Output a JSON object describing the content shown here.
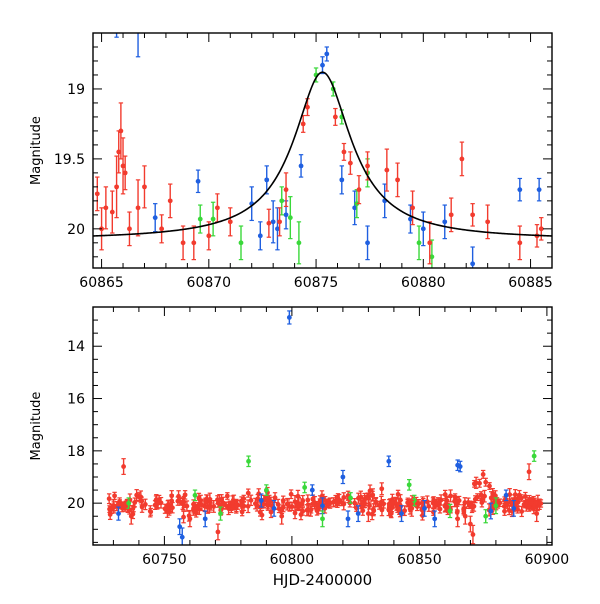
{
  "chart_data": [
    {
      "type": "scatter",
      "panel": "top",
      "xlabel": "",
      "ylabel": "Magnitude",
      "xlim": [
        60864.6,
        60886.0
      ],
      "ylim": [
        20.28,
        18.6
      ],
      "y_inverted": true,
      "x_ticks": [
        60865,
        60870,
        60875,
        60880,
        60885
      ],
      "y_ticks": [
        19,
        19.5,
        20
      ],
      "model_curve": {
        "color": "#000000",
        "peak_x": 60875.3,
        "peak_mag": 18.88,
        "baseline_mag": 20.08,
        "width_days": 1.25
      },
      "series": [
        {
          "color": "#1f5fe0",
          "points": [
            {
              "x": 60865.7,
              "y": 18.45,
              "err": 0.18
            },
            {
              "x": 60866.7,
              "y": 18.55,
              "err": 0.22
            },
            {
              "x": 60867.5,
              "y": 19.92,
              "err": 0.1
            },
            {
              "x": 60869.5,
              "y": 19.66,
              "err": 0.08
            },
            {
              "x": 60872.0,
              "y": 19.82,
              "err": 0.12
            },
            {
              "x": 60872.4,
              "y": 20.05,
              "err": 0.1
            },
            {
              "x": 60872.7,
              "y": 19.65,
              "err": 0.1
            },
            {
              "x": 60873.0,
              "y": 19.95,
              "err": 0.15
            },
            {
              "x": 60873.2,
              "y": 20.0,
              "err": 0.15
            },
            {
              "x": 60873.6,
              "y": 19.9,
              "err": 0.1
            },
            {
              "x": 60874.3,
              "y": 19.55,
              "err": 0.08
            },
            {
              "x": 60875.3,
              "y": 18.83,
              "err": 0.06
            },
            {
              "x": 60875.5,
              "y": 18.75,
              "err": 0.05
            },
            {
              "x": 60876.2,
              "y": 19.65,
              "err": 0.1
            },
            {
              "x": 60876.8,
              "y": 19.85,
              "err": 0.12
            },
            {
              "x": 60877.4,
              "y": 20.1,
              "err": 0.12
            },
            {
              "x": 60878.2,
              "y": 19.8,
              "err": 0.12
            },
            {
              "x": 60879.4,
              "y": 19.93,
              "err": 0.1
            },
            {
              "x": 60880.0,
              "y": 20.0,
              "err": 0.12
            },
            {
              "x": 60881.0,
              "y": 19.95,
              "err": 0.12
            },
            {
              "x": 60882.3,
              "y": 20.25,
              "err": 0.12
            },
            {
              "x": 60884.5,
              "y": 19.72,
              "err": 0.08
            },
            {
              "x": 60885.4,
              "y": 19.72,
              "err": 0.08
            }
          ]
        },
        {
          "color": "#3ad83a",
          "points": [
            {
              "x": 60869.6,
              "y": 19.93,
              "err": 0.1
            },
            {
              "x": 60870.2,
              "y": 19.93,
              "err": 0.12
            },
            {
              "x": 60871.5,
              "y": 20.1,
              "err": 0.12
            },
            {
              "x": 60873.4,
              "y": 19.8,
              "err": 0.1
            },
            {
              "x": 60873.8,
              "y": 19.92,
              "err": 0.15
            },
            {
              "x": 60874.2,
              "y": 20.1,
              "err": 0.15
            },
            {
              "x": 60875.0,
              "y": 18.9,
              "err": 0.05
            },
            {
              "x": 60875.8,
              "y": 19.0,
              "err": 0.05
            },
            {
              "x": 60876.2,
              "y": 19.2,
              "err": 0.05
            },
            {
              "x": 60876.9,
              "y": 19.82,
              "err": 0.1
            },
            {
              "x": 60877.4,
              "y": 19.6,
              "err": 0.1
            },
            {
              "x": 60879.8,
              "y": 20.1,
              "err": 0.12
            },
            {
              "x": 60880.4,
              "y": 20.2,
              "err": 0.12
            }
          ]
        },
        {
          "color": "#f23b2e",
          "points": [
            {
              "x": 60864.8,
              "y": 19.75,
              "err": 0.12
            },
            {
              "x": 60865.0,
              "y": 20.0,
              "err": 0.15
            },
            {
              "x": 60865.2,
              "y": 19.85,
              "err": 0.15
            },
            {
              "x": 60865.5,
              "y": 19.88,
              "err": 0.15
            },
            {
              "x": 60865.7,
              "y": 19.7,
              "err": 0.22
            },
            {
              "x": 60865.8,
              "y": 19.45,
              "err": 0.15
            },
            {
              "x": 60865.9,
              "y": 19.3,
              "err": 0.2
            },
            {
              "x": 60866.0,
              "y": 19.55,
              "err": 0.2
            },
            {
              "x": 60866.1,
              "y": 19.6,
              "err": 0.12
            },
            {
              "x": 60866.3,
              "y": 20.0,
              "err": 0.12
            },
            {
              "x": 60866.7,
              "y": 19.85,
              "err": 0.2
            },
            {
              "x": 60867.0,
              "y": 19.7,
              "err": 0.15
            },
            {
              "x": 60867.8,
              "y": 20.0,
              "err": 0.1
            },
            {
              "x": 60868.2,
              "y": 19.8,
              "err": 0.12
            },
            {
              "x": 60868.8,
              "y": 20.1,
              "err": 0.12
            },
            {
              "x": 60869.3,
              "y": 20.1,
              "err": 0.12
            },
            {
              "x": 60870.0,
              "y": 20.05,
              "err": 0.1
            },
            {
              "x": 60870.4,
              "y": 19.85,
              "err": 0.1
            },
            {
              "x": 60871.0,
              "y": 19.95,
              "err": 0.1
            },
            {
              "x": 60872.8,
              "y": 19.96,
              "err": 0.1
            },
            {
              "x": 60873.3,
              "y": 19.95,
              "err": 0.1
            },
            {
              "x": 60873.6,
              "y": 19.72,
              "err": 0.12
            },
            {
              "x": 60874.4,
              "y": 19.25,
              "err": 0.06
            },
            {
              "x": 60874.6,
              "y": 19.13,
              "err": 0.06
            },
            {
              "x": 60875.9,
              "y": 19.2,
              "err": 0.06
            },
            {
              "x": 60876.3,
              "y": 19.45,
              "err": 0.06
            },
            {
              "x": 60876.6,
              "y": 19.53,
              "err": 0.08
            },
            {
              "x": 60877.0,
              "y": 19.72,
              "err": 0.1
            },
            {
              "x": 60877.4,
              "y": 19.55,
              "err": 0.1
            },
            {
              "x": 60878.3,
              "y": 19.58,
              "err": 0.15
            },
            {
              "x": 60878.8,
              "y": 19.65,
              "err": 0.12
            },
            {
              "x": 60879.5,
              "y": 19.85,
              "err": 0.12
            },
            {
              "x": 60880.3,
              "y": 20.1,
              "err": 0.15
            },
            {
              "x": 60881.3,
              "y": 19.9,
              "err": 0.12
            },
            {
              "x": 60881.8,
              "y": 19.5,
              "err": 0.12
            },
            {
              "x": 60882.3,
              "y": 19.9,
              "err": 0.08
            },
            {
              "x": 60883.0,
              "y": 19.95,
              "err": 0.12
            },
            {
              "x": 60884.5,
              "y": 20.1,
              "err": 0.12
            },
            {
              "x": 60885.3,
              "y": 20.05,
              "err": 0.08
            },
            {
              "x": 60885.5,
              "y": 20.0,
              "err": 0.08
            }
          ]
        }
      ]
    },
    {
      "type": "scatter",
      "panel": "bottom",
      "xlabel": "HJD-2400000",
      "ylabel": "Magnitude",
      "xlim": [
        60722,
        60902
      ],
      "ylim": [
        21.6,
        12.5
      ],
      "y_inverted": true,
      "x_ticks": [
        60750,
        60800,
        60850,
        60900
      ],
      "y_ticks": [
        14,
        16,
        18,
        20
      ],
      "series": [
        {
          "color": "#1f5fe0",
          "points": [
            {
              "x": 60732,
              "y": 20.4,
              "err": 0.25
            },
            {
              "x": 60756,
              "y": 20.9,
              "err": 0.3
            },
            {
              "x": 60757,
              "y": 21.3,
              "err": 0.35
            },
            {
              "x": 60766,
              "y": 20.6,
              "err": 0.3
            },
            {
              "x": 60788,
              "y": 19.9,
              "err": 0.25
            },
            {
              "x": 60793,
              "y": 20.2,
              "err": 0.3
            },
            {
              "x": 60799,
              "y": 12.9,
              "err": 0.25
            },
            {
              "x": 60808,
              "y": 19.5,
              "err": 0.2
            },
            {
              "x": 60812,
              "y": 20.1,
              "err": 0.3
            },
            {
              "x": 60820,
              "y": 19.0,
              "err": 0.25
            },
            {
              "x": 60822,
              "y": 20.6,
              "err": 0.3
            },
            {
              "x": 60826,
              "y": 20.4,
              "err": 0.3
            },
            {
              "x": 60838,
              "y": 18.4,
              "err": 0.2
            },
            {
              "x": 60843,
              "y": 20.4,
              "err": 0.3
            },
            {
              "x": 60852,
              "y": 20.2,
              "err": 0.3
            },
            {
              "x": 60856,
              "y": 20.6,
              "err": 0.3
            },
            {
              "x": 60865,
              "y": 18.55,
              "err": 0.2
            },
            {
              "x": 60866,
              "y": 18.6,
              "err": 0.2
            },
            {
              "x": 60878,
              "y": 20.3,
              "err": 0.3
            },
            {
              "x": 60884,
              "y": 19.7,
              "err": 0.2
            },
            {
              "x": 60887,
              "y": 20.2,
              "err": 0.3
            }
          ]
        },
        {
          "color": "#3ad83a",
          "points": [
            {
              "x": 60736,
              "y": 20.0,
              "err": 0.2
            },
            {
              "x": 60762,
              "y": 19.7,
              "err": 0.2
            },
            {
              "x": 60772,
              "y": 20.4,
              "err": 0.25
            },
            {
              "x": 60783,
              "y": 18.4,
              "err": 0.2
            },
            {
              "x": 60790,
              "y": 19.5,
              "err": 0.2
            },
            {
              "x": 60805,
              "y": 19.4,
              "err": 0.2
            },
            {
              "x": 60812,
              "y": 20.6,
              "err": 0.3
            },
            {
              "x": 60823,
              "y": 19.8,
              "err": 0.2
            },
            {
              "x": 60846,
              "y": 19.3,
              "err": 0.2
            },
            {
              "x": 60848,
              "y": 19.9,
              "err": 0.2
            },
            {
              "x": 60862,
              "y": 20.3,
              "err": 0.25
            },
            {
              "x": 60876,
              "y": 20.5,
              "err": 0.25
            },
            {
              "x": 60880,
              "y": 20.1,
              "err": 0.3
            },
            {
              "x": 60895,
              "y": 18.2,
              "err": 0.2
            }
          ]
        },
        {
          "color": "#f23b2e",
          "points": [
            {
              "x": 60734,
              "y": 18.6,
              "err": 0.3
            },
            {
              "x": 60737,
              "y": 20.5,
              "err": 0.3
            },
            {
              "x": 60760,
              "y": 20.6,
              "err": 0.3
            },
            {
              "x": 60771,
              "y": 21.1,
              "err": 0.3
            },
            {
              "x": 60796,
              "y": 20.5,
              "err": 0.3
            },
            {
              "x": 60830,
              "y": 20.4,
              "err": 0.3
            },
            {
              "x": 60847,
              "y": 20.2,
              "err": 0.3
            },
            {
              "x": 60865,
              "y": 20.6,
              "err": 0.3
            },
            {
              "x": 60868,
              "y": 20.5,
              "err": 0.3
            },
            {
              "x": 60870,
              "y": 20.8,
              "err": 0.3
            },
            {
              "x": 60871,
              "y": 21.2,
              "err": 0.35
            },
            {
              "x": 60875,
              "y": 18.9,
              "err": 0.15
            },
            {
              "x": 60876,
              "y": 19.2,
              "err": 0.15
            },
            {
              "x": 60893,
              "y": 18.8,
              "err": 0.3
            },
            {
              "x": 60896,
              "y": 20.4,
              "err": 0.3
            }
          ]
        }
      ],
      "dense_band": {
        "color": "#f23b2e",
        "x_start": 60728,
        "x_end": 60898,
        "count": 360,
        "median_mag": 20.05,
        "scatter_mag": 0.18,
        "err_mag": 0.2,
        "event_peak_x": 60875,
        "event_peak_mag": 18.9
      }
    }
  ]
}
